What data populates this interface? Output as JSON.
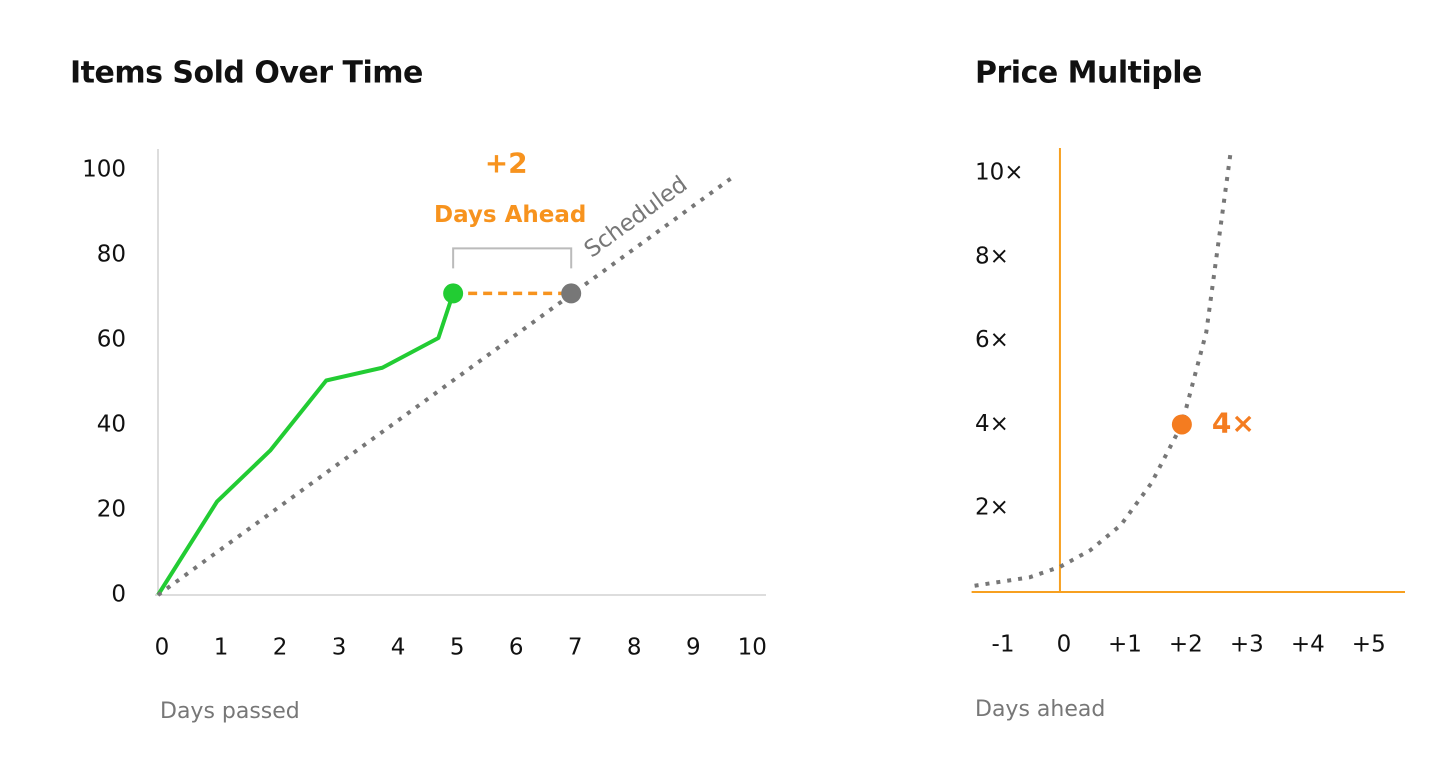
{
  "chart_data": [
    {
      "type": "line",
      "title": "Items Sold Over Time",
      "x_label": "Days passed",
      "axis_color": "#dddddd",
      "xlim": [
        0,
        10.3
      ],
      "xticks": [
        0,
        1,
        2,
        3,
        4,
        5,
        6,
        7,
        8,
        9,
        10
      ],
      "ylim": [
        0,
        105
      ],
      "yticks": [
        0,
        20,
        40,
        60,
        80,
        100
      ],
      "series": [
        {
          "color": "#22cc33",
          "x": [
            0,
            1,
            1.9,
            2.85,
            3.8,
            4.75,
            5
          ],
          "values": [
            0,
            22,
            34,
            50.5,
            53.5,
            60.5,
            71
          ]
        },
        {
          "name": "Scheduled",
          "color": "#777777",
          "dashed": true,
          "x": [
            0,
            9.7
          ],
          "values": [
            0,
            98
          ]
        }
      ],
      "highlights": {
        "x": [
          5,
          7
        ],
        "values": [
          71,
          71
        ],
        "colors": [
          "#22cc33",
          "#777777"
        ]
      },
      "gap": {
        "value": 2,
        "label": "+2",
        "text": "Days Ahead",
        "color": "#f7931e"
      }
    },
    {
      "type": "line",
      "title": "Price Multiple",
      "x_label": "Days ahead",
      "axis_color": "#f7a020",
      "xlim": [
        -1.4,
        5.66
      ],
      "xticks": [
        -1,
        0,
        {
          "value": 1,
          "label": "+1"
        },
        {
          "value": 2,
          "label": "+2"
        },
        {
          "value": 3,
          "label": "+3"
        },
        {
          "value": 4,
          "label": "+4"
        },
        {
          "value": 5,
          "label": "+5"
        }
      ],
      "ylim": [
        0,
        10.6
      ],
      "yticks": [
        {
          "value": 2,
          "label": "2×"
        },
        {
          "value": 4,
          "label": "4×"
        },
        {
          "value": 6,
          "label": "6×"
        },
        {
          "value": 8,
          "label": "8×"
        },
        {
          "value": 10,
          "label": "10×"
        }
      ],
      "series": [
        {
          "color": "#777777",
          "dashed": true,
          "x": [
            -1.4,
            -0.5,
            0,
            0.5,
            1,
            1.5,
            2,
            2.4,
            2.8
          ],
          "values": [
            0.15,
            0.35,
            0.6,
            1.0,
            1.6,
            2.6,
            4,
            6.2,
            10.5
          ]
        }
      ],
      "point": {
        "x": 2,
        "value": 4,
        "value_label": "4×",
        "color": "#f47c20"
      }
    }
  ]
}
